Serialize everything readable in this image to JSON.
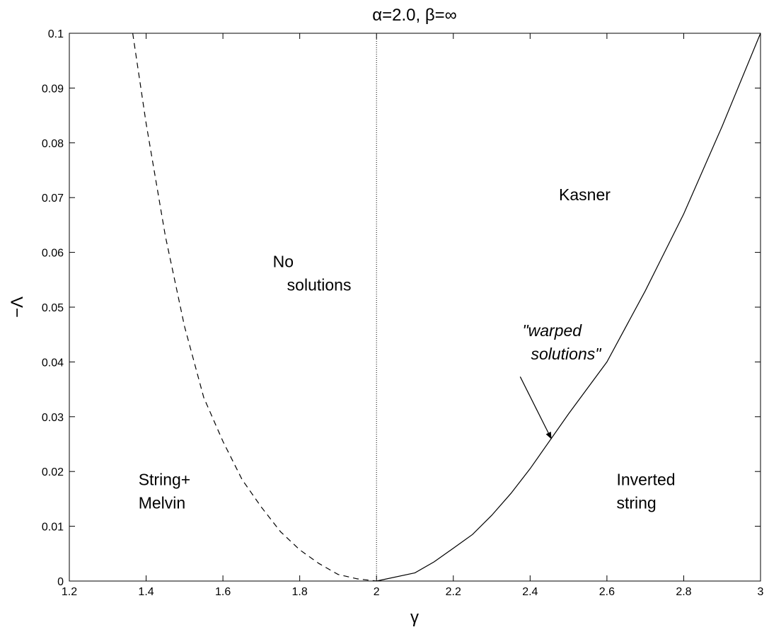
{
  "chart_data": {
    "type": "line",
    "title": "α=2.0, β=∞",
    "xlabel": "γ",
    "ylabel": "−Λ",
    "xlim": [
      1.2,
      3.0
    ],
    "ylim": [
      0,
      0.1
    ],
    "grid": false,
    "legend": "none",
    "xticks": [
      1.2,
      1.4,
      1.6,
      1.8,
      2.0,
      2.2,
      2.4,
      2.6,
      2.8,
      3.0
    ],
    "xtick_labels": [
      "1.2",
      "1.4",
      "1.6",
      "1.8",
      "2",
      "2.2",
      "2.4",
      "2.6",
      "2.8",
      "3"
    ],
    "yticks": [
      0,
      0.01,
      0.02,
      0.03,
      0.04,
      0.05,
      0.06,
      0.07,
      0.08,
      0.09,
      0.1
    ],
    "ytick_labels": [
      "0",
      "0.01",
      "0.02",
      "0.03",
      "0.04",
      "0.05",
      "0.06",
      "0.07",
      "0.08",
      "0.09",
      "0.1"
    ],
    "series": [
      {
        "style": "dashed",
        "x": [
          1.365,
          1.4,
          1.45,
          1.5,
          1.55,
          1.6,
          1.65,
          1.7,
          1.75,
          1.8,
          1.85,
          1.9,
          1.95,
          2.0
        ],
        "y": [
          0.1,
          0.0835,
          0.063,
          0.0465,
          0.0335,
          0.0255,
          0.0185,
          0.0135,
          0.009,
          0.0057,
          0.0032,
          0.0012,
          0.0004,
          0.0
        ]
      },
      {
        "style": "solid",
        "x": [
          2.0,
          2.1,
          2.15,
          2.2,
          2.25,
          2.3,
          2.35,
          2.4,
          2.5,
          2.6,
          2.7,
          2.8,
          2.9,
          3.0
        ],
        "y": [
          0.0,
          0.0015,
          0.0035,
          0.006,
          0.0085,
          0.012,
          0.016,
          0.0205,
          0.0305,
          0.04,
          0.053,
          0.067,
          0.083,
          0.1
        ]
      },
      {
        "style": "dotted",
        "x": [
          2.0,
          2.0
        ],
        "y": [
          0.0,
          0.1
        ]
      }
    ],
    "annotations": [
      {
        "lines": [
          "String+",
          "Melvin"
        ],
        "x": 1.38,
        "y": 0.0175,
        "style": "normal"
      },
      {
        "lines": [
          "No",
          "solutions"
        ],
        "x": 1.73,
        "y": 0.0573,
        "style": "normal"
      },
      {
        "lines": [
          "Kasner"
        ],
        "x": 2.475,
        "y": 0.0695,
        "style": "normal"
      },
      {
        "lines": [
          "\"warped",
          "solutions\""
        ],
        "x": 2.38,
        "y": 0.0447,
        "style": "italic",
        "arrow_to": [
          2.455,
          0.026
        ]
      },
      {
        "lines": [
          "Inverted",
          "string"
        ],
        "x": 2.625,
        "y": 0.0175,
        "style": "normal"
      }
    ]
  }
}
